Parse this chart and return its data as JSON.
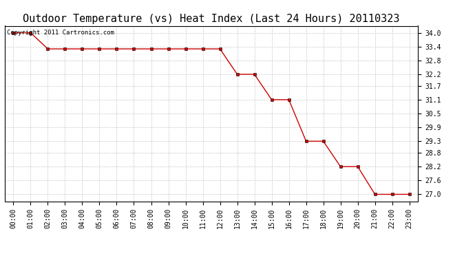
{
  "title": "Outdoor Temperature (vs) Heat Index (Last 24 Hours) 20110323",
  "copyright_text": "Copyright 2011 Cartronics.com",
  "x_labels": [
    "00:00",
    "01:00",
    "02:00",
    "03:00",
    "04:00",
    "05:00",
    "06:00",
    "07:00",
    "08:00",
    "09:00",
    "10:00",
    "11:00",
    "12:00",
    "13:00",
    "14:00",
    "15:00",
    "16:00",
    "17:00",
    "18:00",
    "19:00",
    "20:00",
    "21:00",
    "22:00",
    "23:00"
  ],
  "y_values": [
    34.0,
    34.0,
    33.3,
    33.3,
    33.3,
    33.3,
    33.3,
    33.3,
    33.3,
    33.3,
    33.3,
    33.3,
    33.3,
    32.2,
    32.2,
    31.1,
    31.1,
    29.3,
    29.3,
    28.2,
    28.2,
    27.0,
    27.0,
    27.0
  ],
  "ylim_min": 26.7,
  "ylim_max": 34.3,
  "yticks": [
    34.0,
    33.4,
    32.8,
    32.2,
    31.7,
    31.1,
    30.5,
    29.9,
    29.3,
    28.8,
    28.2,
    27.6,
    27.0
  ],
  "line_color": "#cc0000",
  "marker": "s",
  "marker_size": 2.5,
  "bg_color": "#ffffff",
  "grid_color": "#bbbbbb",
  "title_fontsize": 11,
  "tick_fontsize": 7,
  "copyright_fontsize": 6.5
}
